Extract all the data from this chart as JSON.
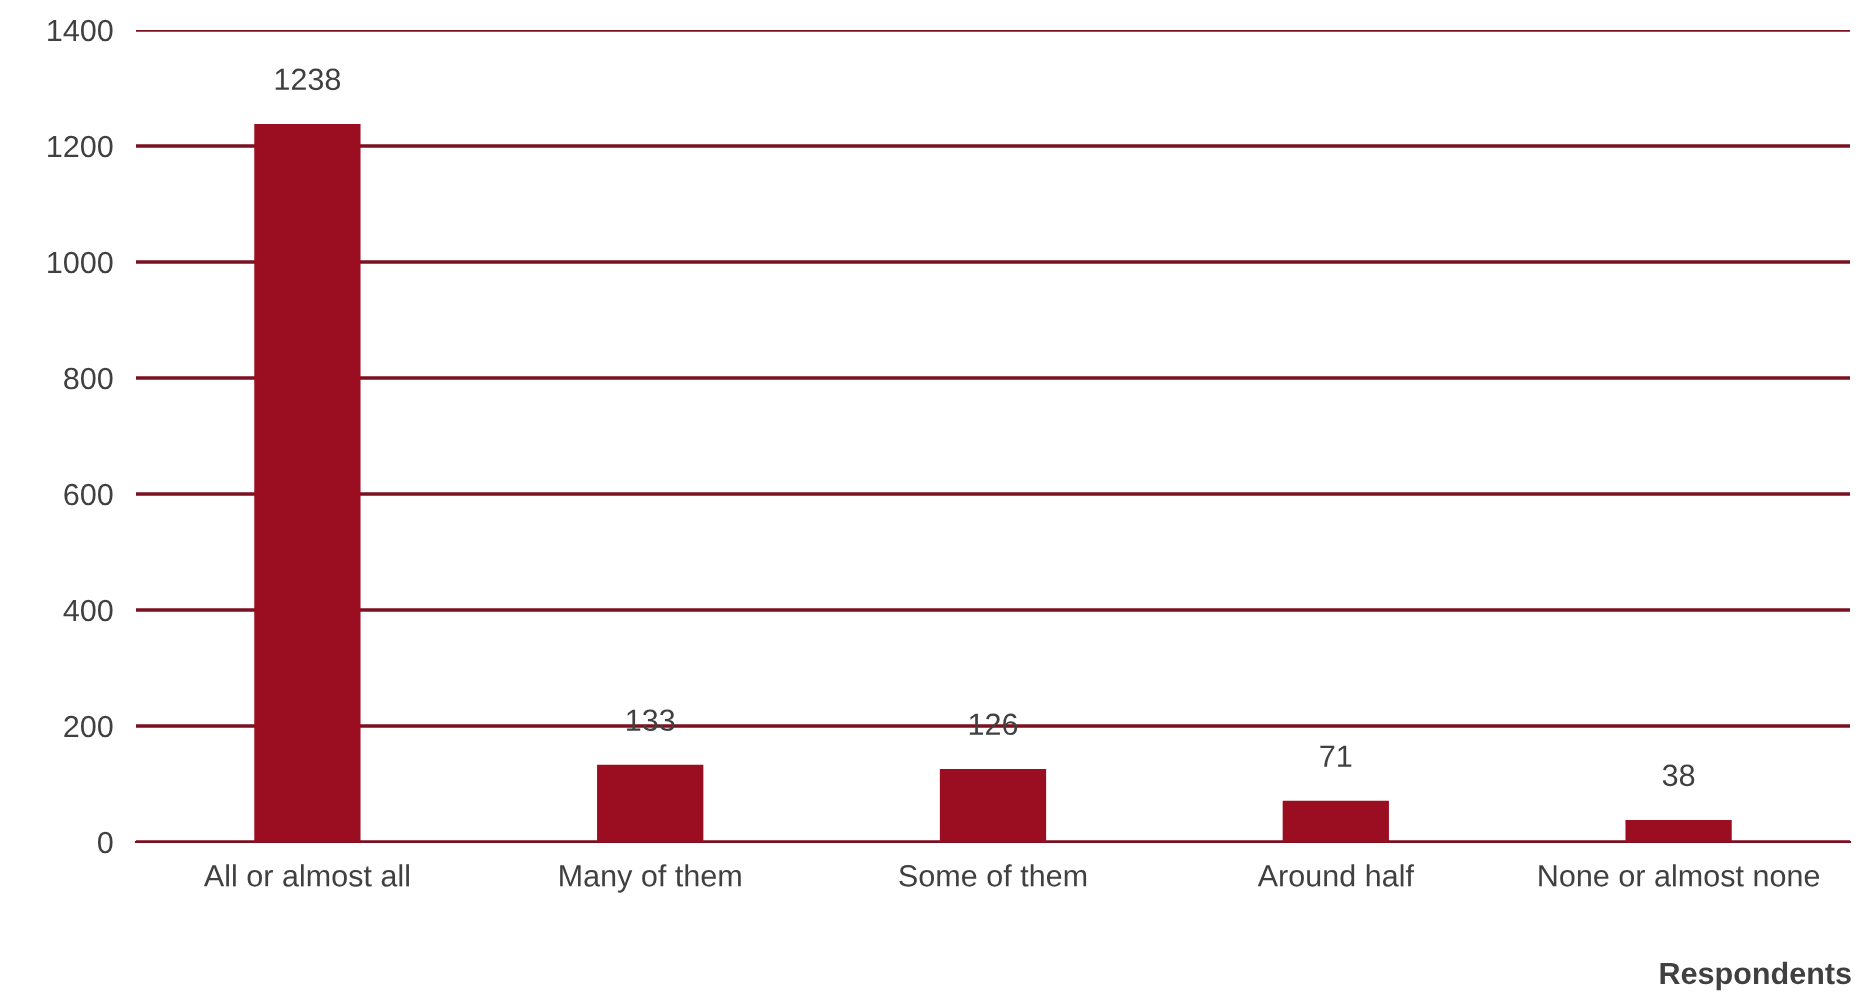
{
  "chart_data": {
    "type": "bar",
    "categories": [
      "All or almost all",
      "Many of them",
      "Some of them",
      "Around half",
      "None or almost none"
    ],
    "values": [
      1238,
      133,
      126,
      71,
      38
    ],
    "color": "#9b0d20",
    "xlabel": "Respondents",
    "ylim": [
      0,
      1400
    ],
    "yticks": [
      0,
      200,
      400,
      600,
      800,
      1000,
      1200,
      1400
    ],
    "grid": "y",
    "data_labels": true
  }
}
